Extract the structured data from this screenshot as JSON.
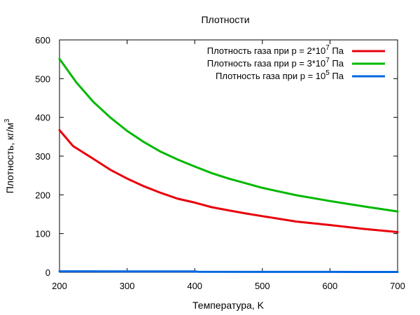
{
  "chart_data": {
    "type": "line",
    "title": "Плотности",
    "xlabel": "Температура, K",
    "ylabel": {
      "base": "Плотность, кг/м",
      "sup": "3"
    },
    "xlim": [
      200,
      700
    ],
    "ylim": [
      0,
      600
    ],
    "xticks": [
      "200",
      "300",
      "400",
      "500",
      "600",
      "700"
    ],
    "yticks": [
      "0",
      "100",
      "200",
      "300",
      "400",
      "500",
      "600"
    ],
    "grid": false,
    "legend_position": "top-right",
    "series": [
      {
        "name": {
          "base": "Плотность газа при p = 2*10",
          "sup": "7",
          "tail": " Па"
        },
        "color": "#e8000b",
        "x": [
          200,
          220,
          250,
          275,
          300,
          325,
          350,
          375,
          400,
          425,
          450,
          475,
          500,
          550,
          600,
          650,
          700
        ],
        "y": [
          367,
          326,
          293,
          265,
          242,
          222,
          205,
          190,
          180,
          168,
          160,
          152,
          145,
          131,
          122,
          112,
          104
        ]
      },
      {
        "name": {
          "base": "Плотность газа при p = 3*10",
          "sup": "7",
          "tail": " Па"
        },
        "color": "#00b800",
        "x": [
          200,
          225,
          250,
          275,
          300,
          325,
          350,
          375,
          400,
          425,
          450,
          475,
          500,
          550,
          600,
          650,
          700
        ],
        "y": [
          551,
          490,
          440,
          400,
          365,
          336,
          311,
          291,
          273,
          256,
          242,
          230,
          218,
          199,
          184,
          170,
          157
        ]
      },
      {
        "name": {
          "base": "Плотность газа при p = 10",
          "sup": "5",
          "tail": " Па"
        },
        "color": "#0066e0",
        "x": [
          200,
          300,
          400,
          405,
          500,
          600,
          700
        ],
        "y": [
          2.5,
          2.3,
          2.1,
          1.2,
          1.1,
          1.0,
          0.9
        ]
      }
    ]
  }
}
